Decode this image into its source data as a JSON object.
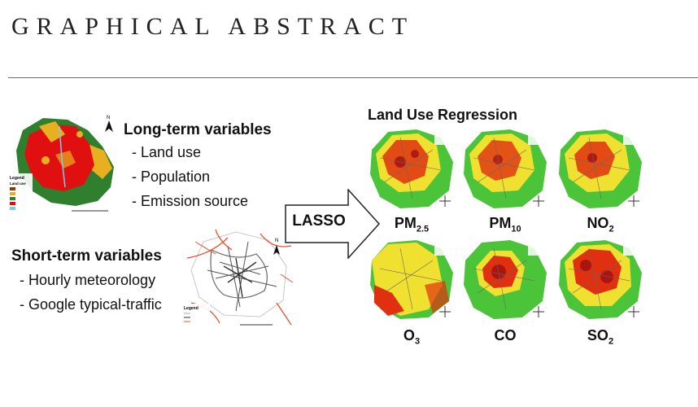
{
  "header": {
    "title": "GRAPHICAL ABSTRACT"
  },
  "long_term": {
    "title": "Long-term variables",
    "items": [
      "- Land use",
      "- Population",
      "- Emission source"
    ],
    "map_legend_title": "Legend",
    "map_legend_subtitle": "Land use",
    "colors": {
      "urban": "#e01010",
      "cropland": "#e8b020",
      "forest": "#2f7f2f",
      "water": "#7fc8e8"
    }
  },
  "short_term": {
    "title": "Short-term variables",
    "items": [
      "- Hourly meteorology",
      "- Google typical-traffic"
    ],
    "map_legend_title": "Legend"
  },
  "lasso": {
    "label": "LASSO"
  },
  "lur": {
    "title": "Land Use Regression",
    "panels": [
      {
        "base": "PM",
        "sub": "2.5"
      },
      {
        "base": "PM",
        "sub": "10"
      },
      {
        "base": "NO",
        "sub": "2"
      },
      {
        "base": "O",
        "sub": "3"
      },
      {
        "base": "CO",
        "sub": ""
      },
      {
        "base": "SO",
        "sub": "2"
      }
    ],
    "colors": {
      "low": "#4cc43a",
      "mid": "#f0e030",
      "high": "#e03010",
      "peak": "#a01010"
    }
  }
}
